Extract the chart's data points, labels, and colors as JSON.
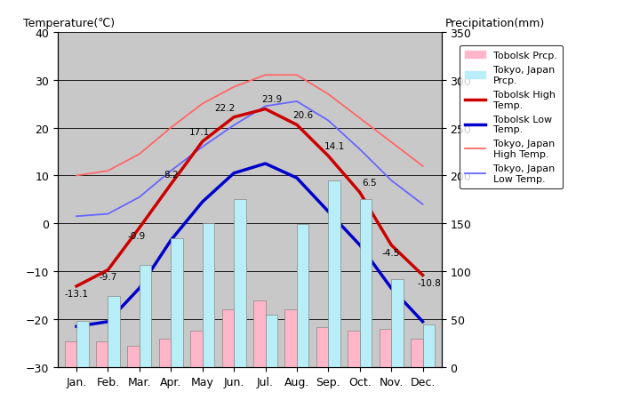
{
  "months": [
    "Jan.",
    "Feb.",
    "Mar.",
    "Apr.",
    "May",
    "Jun.",
    "Jul.",
    "Aug.",
    "Sep.",
    "Oct.",
    "Nov.",
    "Dec."
  ],
  "tobolsk_high": [
    -13.1,
    -9.7,
    -0.9,
    8.2,
    17.1,
    22.2,
    23.9,
    20.6,
    14.1,
    6.5,
    -4.5,
    -10.8
  ],
  "tobolsk_low": [
    -21.5,
    -20.5,
    -13.5,
    -3.5,
    4.5,
    10.5,
    12.5,
    9.5,
    2.5,
    -4.5,
    -13.5,
    -20.5
  ],
  "tokyo_high": [
    10.0,
    11.0,
    14.5,
    20.0,
    25.0,
    28.5,
    31.0,
    31.0,
    27.0,
    22.0,
    17.0,
    12.0
  ],
  "tokyo_low": [
    1.5,
    2.0,
    5.5,
    11.0,
    16.0,
    20.5,
    24.5,
    25.5,
    21.5,
    15.5,
    9.0,
    4.0
  ],
  "tobolsk_prcp": [
    27,
    27,
    22,
    30,
    38,
    60,
    70,
    60,
    42,
    38,
    40,
    30
  ],
  "tokyo_prcp": [
    48,
    74,
    107,
    135,
    150,
    175,
    55,
    149,
    195,
    175,
    92,
    45
  ],
  "temp_ylim": [
    -30,
    40
  ],
  "prcp_ylim": [
    0,
    350
  ],
  "temp_yticks": [
    -30,
    -20,
    -10,
    0,
    10,
    20,
    30,
    40
  ],
  "prcp_yticks": [
    0,
    50,
    100,
    150,
    200,
    250,
    300,
    350
  ],
  "bg_color": "#c8c8c8",
  "tobolsk_high_color": "#cc0000",
  "tobolsk_low_color": "#0000cc",
  "tokyo_high_color": "#ff6666",
  "tokyo_low_color": "#6666ff",
  "tobolsk_prcp_color": "#ffb6c8",
  "tokyo_prcp_color": "#b8eef8",
  "bar_width": 0.38,
  "title_left": "Temperature(℃)",
  "title_right": "Precipitation(mm)",
  "high_labels": [
    -13.1,
    -9.7,
    -0.9,
    8.2,
    17.1,
    22.2,
    23.9,
    20.6,
    14.1,
    6.5,
    -4.5,
    -10.8
  ],
  "label_show": [
    true,
    true,
    true,
    true,
    true,
    true,
    true,
    true,
    true,
    true,
    true,
    true
  ]
}
